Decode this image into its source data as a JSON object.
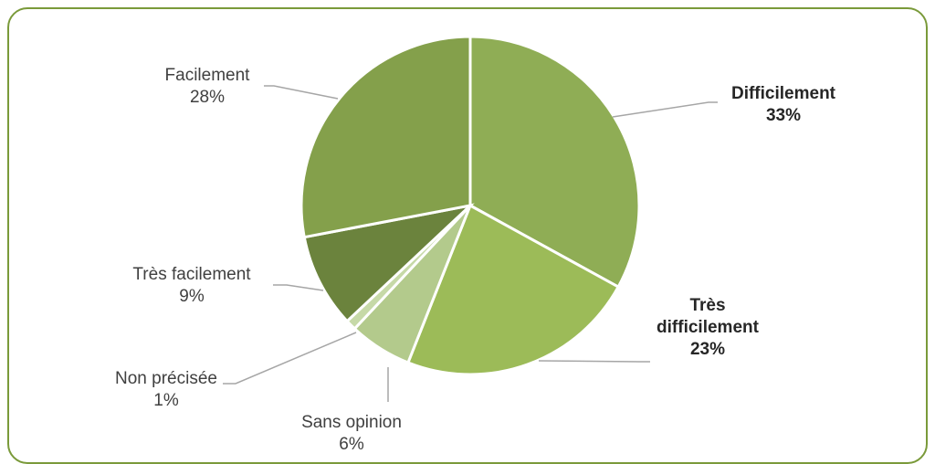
{
  "chart_data": {
    "type": "pie",
    "title": "",
    "slices": [
      {
        "name": "Difficilement",
        "value": 33,
        "label": "33%",
        "color": "#8fad55",
        "bold": true
      },
      {
        "name": "Très difficilement",
        "value": 23,
        "label": "23%",
        "color": "#9cbb58",
        "bold": true
      },
      {
        "name": "Sans opinion",
        "value": 6,
        "label": "6%",
        "color": "#b3ca8c",
        "bold": false
      },
      {
        "name": "Non précisée",
        "value": 1,
        "label": "1%",
        "color": "#c6d9a7",
        "bold": false
      },
      {
        "name": "Très facilement",
        "value": 9,
        "label": "9%",
        "color": "#6b833d",
        "bold": false
      },
      {
        "name": "Facilement",
        "value": 28,
        "label": "28%",
        "color": "#84a04b",
        "bold": false
      }
    ],
    "legend": "none",
    "data_labels": "outside-with-leader-lines"
  }
}
